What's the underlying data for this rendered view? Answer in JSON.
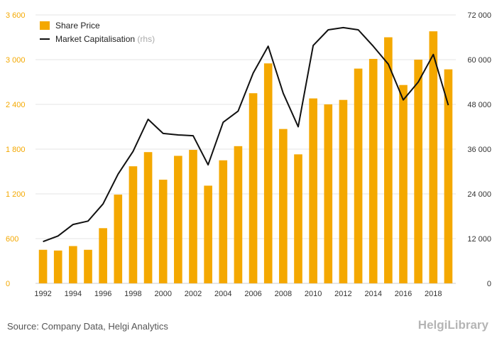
{
  "chart_data": {
    "type": "bar+line",
    "x": [
      1992,
      1993,
      1994,
      1995,
      1996,
      1997,
      1998,
      1999,
      2000,
      2001,
      2002,
      2003,
      2004,
      2005,
      2006,
      2007,
      2008,
      2009,
      2010,
      2011,
      2012,
      2013,
      2014,
      2015,
      2016,
      2017,
      2018,
      2019
    ],
    "x_tick_labels": [
      "1992",
      "1994",
      "1996",
      "1998",
      "2000",
      "2002",
      "2004",
      "2006",
      "2008",
      "2010",
      "2012",
      "2014",
      "2016",
      "2018"
    ],
    "series": [
      {
        "name": "Share Price",
        "type": "bar",
        "axis": "left",
        "color": "#f4a800",
        "values": [
          450,
          440,
          500,
          450,
          740,
          1190,
          1570,
          1760,
          1390,
          1710,
          1790,
          1310,
          1650,
          1840,
          2550,
          2950,
          2070,
          1730,
          2480,
          2400,
          2460,
          2880,
          3010,
          3300,
          2660,
          3000,
          3380,
          2870
        ]
      },
      {
        "name": "Market Capitalisation",
        "name_suffix": "(rhs)",
        "type": "line",
        "axis": "right",
        "color": "#111111",
        "values": [
          11200,
          12700,
          15800,
          16700,
          21300,
          29300,
          35400,
          44000,
          40200,
          39800,
          39600,
          31800,
          43200,
          46200,
          56400,
          63600,
          51000,
          42000,
          63800,
          68000,
          68600,
          68000,
          63600,
          58800,
          49200,
          54000,
          61400,
          47800
        ]
      }
    ],
    "yaxis_left": {
      "ylim": [
        0,
        3600
      ],
      "ticks": [
        0,
        600,
        1200,
        1800,
        2400,
        3000,
        3600
      ],
      "tick_labels": [
        "0",
        "600",
        "1 200",
        "1 800",
        "2 400",
        "3 000",
        "3 600"
      ]
    },
    "yaxis_right": {
      "ylim": [
        0,
        72000
      ],
      "ticks": [
        0,
        12000,
        24000,
        36000,
        48000,
        60000,
        72000
      ],
      "tick_labels": [
        "0",
        "12 000",
        "24 000",
        "36 000",
        "48 000",
        "60 000",
        "72 000"
      ]
    },
    "grid": "horizontal",
    "legend_position": "top-left"
  },
  "footer": {
    "source": "Source: Company Data, Helgi Analytics",
    "logo": "HelgiLibrary"
  }
}
